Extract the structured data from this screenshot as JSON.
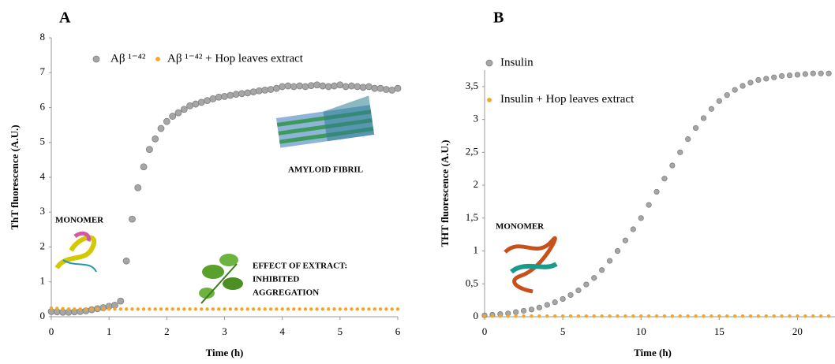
{
  "chart_data": [
    {
      "type": "scatter",
      "title": "A",
      "xlabel": "Time (h)",
      "ylabel": "ThT fluorescence (A.U.)",
      "x": [
        0,
        0.1,
        0.2,
        0.3,
        0.4,
        0.5,
        0.6,
        0.7,
        0.8,
        0.9,
        1.0,
        1.1,
        1.2,
        1.3,
        1.4,
        1.5,
        1.6,
        1.7,
        1.8,
        1.9,
        2.0,
        2.1,
        2.2,
        2.3,
        2.4,
        2.5,
        2.6,
        2.7,
        2.8,
        2.9,
        3.0,
        3.1,
        3.2,
        3.3,
        3.4,
        3.5,
        3.6,
        3.7,
        3.8,
        3.9,
        4.0,
        4.1,
        4.2,
        4.3,
        4.4,
        4.5,
        4.6,
        4.7,
        4.8,
        4.9,
        5.0,
        5.1,
        5.2,
        5.3,
        5.4,
        5.5,
        5.6,
        5.7,
        5.8,
        5.9,
        6.0
      ],
      "series": [
        {
          "name": "Aβ ¹⁻⁴²",
          "color": "#a6a6a6",
          "values": [
            0.15,
            0.14,
            0.13,
            0.13,
            0.14,
            0.15,
            0.17,
            0.2,
            0.23,
            0.26,
            0.3,
            0.33,
            0.45,
            1.6,
            2.8,
            3.7,
            4.3,
            4.8,
            5.1,
            5.4,
            5.6,
            5.75,
            5.85,
            5.95,
            6.05,
            6.1,
            6.15,
            6.2,
            6.25,
            6.3,
            6.32,
            6.35,
            6.38,
            6.4,
            6.42,
            6.45,
            6.48,
            6.5,
            6.52,
            6.55,
            6.6,
            6.62,
            6.6,
            6.62,
            6.6,
            6.63,
            6.65,
            6.62,
            6.6,
            6.62,
            6.65,
            6.6,
            6.62,
            6.6,
            6.58,
            6.6,
            6.55,
            6.55,
            6.52,
            6.5,
            6.55
          ]
        },
        {
          "name": "Aβ ¹⁻⁴² + Hop leaves extract",
          "color": "#f5a623",
          "values": [
            0.25,
            0.24,
            0.23,
            0.22,
            0.22,
            0.22,
            0.22,
            0.22,
            0.22,
            0.22,
            0.22,
            0.22,
            0.22,
            0.22,
            0.22,
            0.22,
            0.22,
            0.22,
            0.22,
            0.22,
            0.22,
            0.22,
            0.22,
            0.22,
            0.22,
            0.22,
            0.22,
            0.22,
            0.22,
            0.22,
            0.22,
            0.22,
            0.22,
            0.22,
            0.22,
            0.22,
            0.22,
            0.22,
            0.22,
            0.22,
            0.22,
            0.22,
            0.22,
            0.22,
            0.22,
            0.22,
            0.22,
            0.22,
            0.22,
            0.22,
            0.22,
            0.22,
            0.22,
            0.22,
            0.22,
            0.22,
            0.22,
            0.22,
            0.22,
            0.22,
            0.22
          ]
        }
      ],
      "xlim": [
        0,
        6
      ],
      "ylim": [
        0,
        8
      ],
      "xticks": [
        0,
        1,
        2,
        3,
        4,
        5,
        6
      ],
      "yticks": [
        0,
        1,
        2,
        3,
        4,
        5,
        6,
        7,
        8
      ],
      "annotations": [
        "MONOMER",
        "AMYLOID FIBRIL",
        "EFFECT OF EXTRACT:",
        "INHIBITED",
        "AGGREGATION"
      ]
    },
    {
      "type": "scatter",
      "title": "B",
      "xlabel": "Time (h)",
      "ylabel": "THT fluorescence (A.U.)",
      "x": [
        0,
        0.5,
        1,
        1.5,
        2,
        2.5,
        3,
        3.5,
        4,
        4.5,
        5,
        5.5,
        6,
        6.5,
        7,
        7.5,
        8,
        8.5,
        9,
        9.5,
        10,
        10.5,
        11,
        11.5,
        12,
        12.5,
        13,
        13.5,
        14,
        14.5,
        15,
        15.5,
        16,
        16.5,
        17,
        17.5,
        18,
        18.5,
        19,
        19.5,
        20,
        20.5,
        21,
        21.5,
        22
      ],
      "series": [
        {
          "name": "Insulin",
          "color": "#a6a6a6",
          "values": [
            0.02,
            0.03,
            0.04,
            0.05,
            0.07,
            0.09,
            0.11,
            0.14,
            0.18,
            0.22,
            0.27,
            0.33,
            0.4,
            0.49,
            0.59,
            0.71,
            0.85,
            1.0,
            1.16,
            1.33,
            1.5,
            1.7,
            1.9,
            2.1,
            2.3,
            2.5,
            2.7,
            2.87,
            3.02,
            3.16,
            3.28,
            3.37,
            3.45,
            3.51,
            3.56,
            3.6,
            3.62,
            3.64,
            3.66,
            3.67,
            3.68,
            3.69,
            3.7,
            3.7,
            3.7
          ]
        },
        {
          "name": "Insulin + Hop leaves extract",
          "color": "#f5a623",
          "values": [
            0.01,
            0.01,
            0.01,
            0.01,
            0.01,
            0.01,
            0.01,
            0.01,
            0.01,
            0.01,
            0.01,
            0.01,
            0.01,
            0.01,
            0.01,
            0.01,
            0.01,
            0.01,
            0.01,
            0.01,
            0.01,
            0.01,
            0.01,
            0.01,
            0.01,
            0.01,
            0.01,
            0.01,
            0.01,
            0.01,
            0.01,
            0.01,
            0.01,
            0.01,
            0.01,
            0.01,
            0.01,
            0.01,
            0.01,
            0.01,
            0.01,
            0.01,
            0.01,
            0.01,
            0.01
          ]
        }
      ],
      "xlim": [
        0,
        22.4
      ],
      "ylim": [
        0,
        3.75
      ],
      "xticks": [
        0,
        5,
        10,
        15,
        20
      ],
      "yticks": [
        0,
        {
          "value": 0.5,
          "label": "0,5"
        },
        1,
        {
          "value": 1.5,
          "label": "1,5"
        },
        2,
        {
          "value": 2.5,
          "label": "2,5"
        },
        3,
        {
          "value": 3.5,
          "label": "3,5"
        }
      ],
      "annotations": [
        "MONOMER"
      ]
    }
  ]
}
